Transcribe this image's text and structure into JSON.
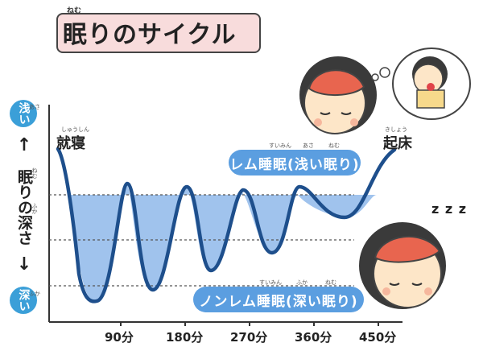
{
  "title": {
    "text": "眠りのサイクル",
    "ruby": "ねむ"
  },
  "left_axis": {
    "top_badge": "浅い",
    "top_badge_ruby": "あさ",
    "arrow_up": "↑",
    "label": "眠りの深さ",
    "label_ruby_1": "ねむ",
    "label_ruby_2": "ふか",
    "arrow_down": "↓",
    "bottom_badge": "深い",
    "bottom_badge_ruby": "ふか"
  },
  "start_label": {
    "text": "就寝",
    "ruby": "しゅうしん"
  },
  "end_label": {
    "text": "起床",
    "ruby": "きしょう"
  },
  "rem_pill": {
    "text": "レム睡眠(浅い眠り)",
    "ruby_1": "すいみん",
    "ruby_2": "あさ",
    "ruby_3": "ねむ"
  },
  "nonrem_pill": {
    "text": "ノンレム睡眠(深い眠り)",
    "ruby_1": "すいみん",
    "ruby_2": "ふか",
    "ruby_3": "ねむ"
  },
  "x_ticks": [
    "90分",
    "180分",
    "270分",
    "360分",
    "450分"
  ],
  "sleep_z": "z z z",
  "colors": {
    "accent": "#3b9fd8",
    "pill": "#5b9ee0",
    "fill": "#8fb9ea",
    "curve": "#1e4f8c",
    "title_bg": "#f8dcdc"
  }
}
